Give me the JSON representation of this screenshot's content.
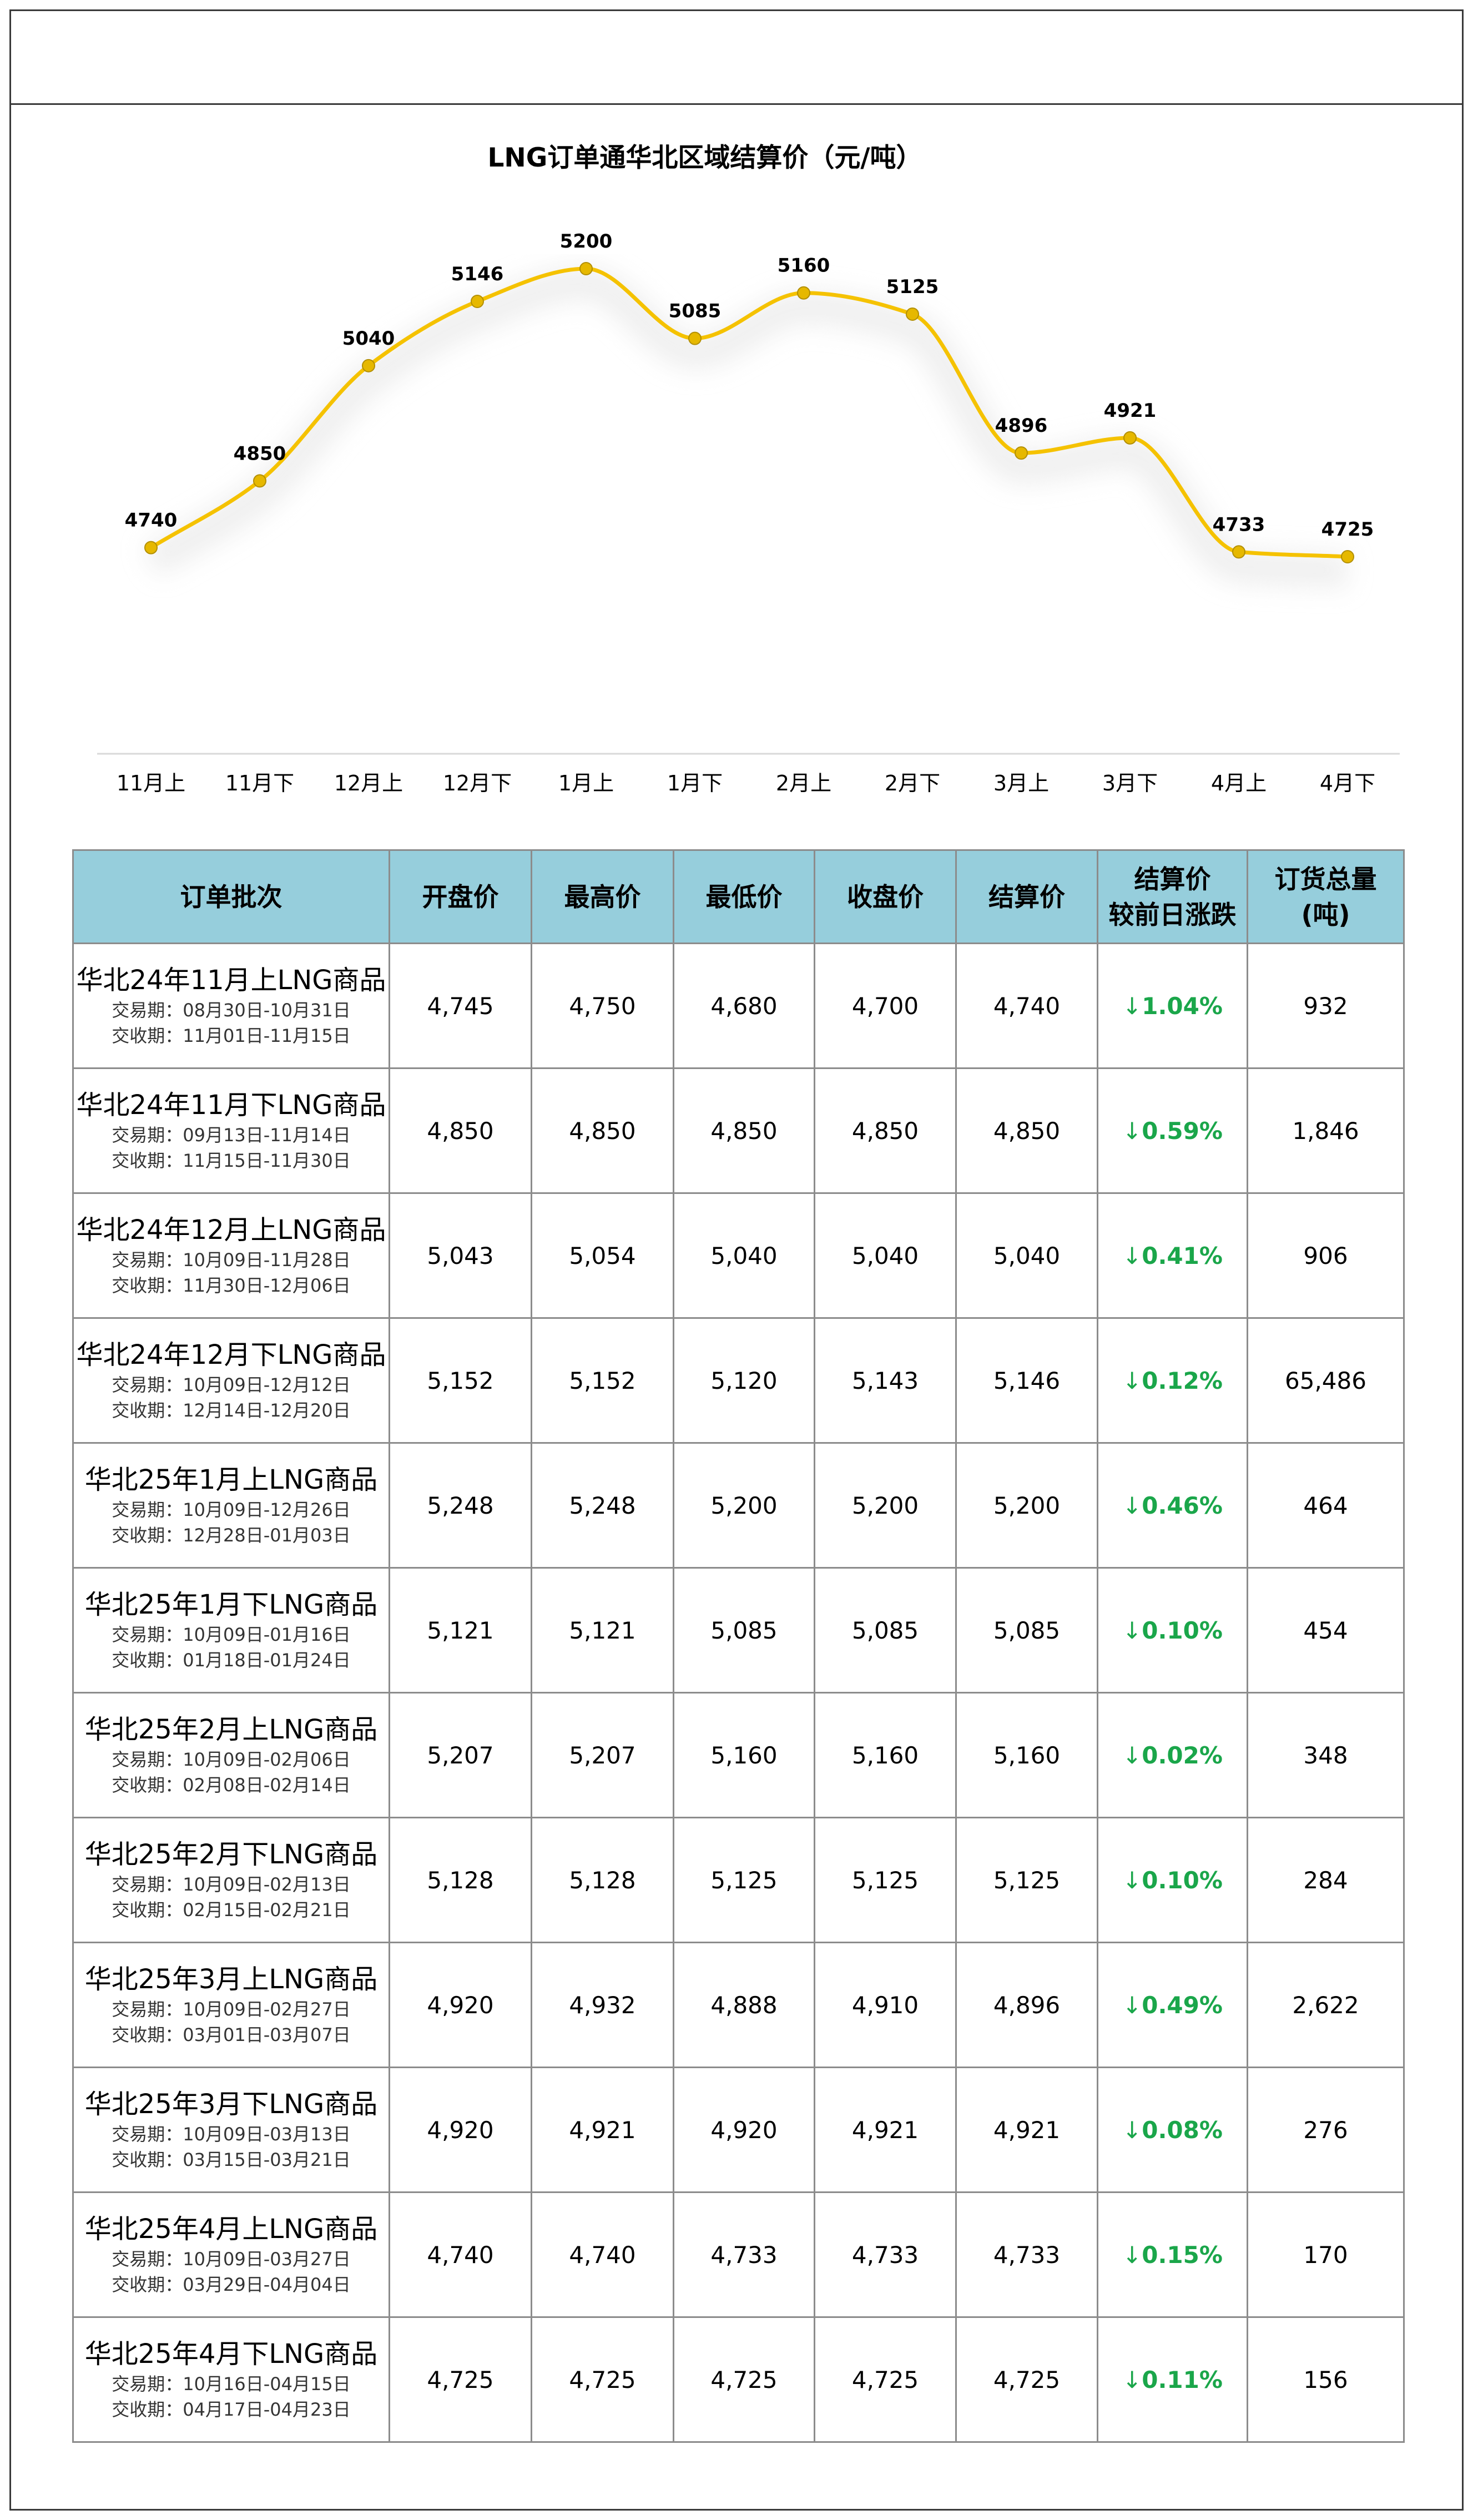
{
  "chart_data": {
    "type": "line",
    "title": "LNG订单通华北区域结算价（元/吨）",
    "categories": [
      "11月上",
      "11月下",
      "12月上",
      "12月下",
      "1月上",
      "1月下",
      "2月上",
      "2月下",
      "3月上",
      "3月下",
      "4月上",
      "4月下"
    ],
    "series": [
      {
        "values": [
          4740,
          4850,
          5040,
          5146,
          5200,
          5085,
          5160,
          5125,
          4896,
          4921,
          4733,
          4725
        ]
      }
    ],
    "line_color": "#f5c200",
    "marker_color": "#e6b800",
    "smooth": true,
    "data_labels": true,
    "grid": false
  },
  "table": {
    "headers": [
      {
        "lines": [
          "订单批次"
        ]
      },
      {
        "lines": [
          "开盘价"
        ]
      },
      {
        "lines": [
          "最高价"
        ]
      },
      {
        "lines": [
          "最低价"
        ]
      },
      {
        "lines": [
          "收盘价"
        ]
      },
      {
        "lines": [
          "结算价"
        ]
      },
      {
        "lines": [
          "结算价",
          "较前日涨跌"
        ]
      },
      {
        "lines": [
          "订货总量",
          "(吨)"
        ]
      }
    ],
    "header_bg": "#96cedc",
    "change_color": "#1aa64a",
    "rows": [
      {
        "name": "华北24年11月上LNG商品",
        "trade": "交易期：08月30日-10月31日",
        "delivery": "交收期：11月01日-11月15日",
        "open": "4,745",
        "high": "4,750",
        "low": "4,680",
        "close": "4,700",
        "settle": "4,740",
        "arrow": "↓",
        "change": "1.04%",
        "volume": "932"
      },
      {
        "name": "华北24年11月下LNG商品",
        "trade": "交易期：09月13日-11月14日",
        "delivery": "交收期：11月15日-11月30日",
        "open": "4,850",
        "high": "4,850",
        "low": "4,850",
        "close": "4,850",
        "settle": "4,850",
        "arrow": "↓",
        "change": "0.59%",
        "volume": "1,846"
      },
      {
        "name": "华北24年12月上LNG商品",
        "trade": "交易期：10月09日-11月28日",
        "delivery": "交收期：11月30日-12月06日",
        "open": "5,043",
        "high": "5,054",
        "low": "5,040",
        "close": "5,040",
        "settle": "5,040",
        "arrow": "↓",
        "change": "0.41%",
        "volume": "906"
      },
      {
        "name": "华北24年12月下LNG商品",
        "trade": "交易期：10月09日-12月12日",
        "delivery": "交收期：12月14日-12月20日",
        "open": "5,152",
        "high": "5,152",
        "low": "5,120",
        "close": "5,143",
        "settle": "5,146",
        "arrow": "↓",
        "change": "0.12%",
        "volume": "65,486"
      },
      {
        "name": "华北25年1月上LNG商品",
        "trade": "交易期：10月09日-12月26日",
        "delivery": "交收期：12月28日-01月03日",
        "open": "5,248",
        "high": "5,248",
        "low": "5,200",
        "close": "5,200",
        "settle": "5,200",
        "arrow": "↓",
        "change": "0.46%",
        "volume": "464"
      },
      {
        "name": "华北25年1月下LNG商品",
        "trade": "交易期：10月09日-01月16日",
        "delivery": "交收期：01月18日-01月24日",
        "open": "5,121",
        "high": "5,121",
        "low": "5,085",
        "close": "5,085",
        "settle": "5,085",
        "arrow": "↓",
        "change": "0.10%",
        "volume": "454"
      },
      {
        "name": "华北25年2月上LNG商品",
        "trade": "交易期：10月09日-02月06日",
        "delivery": "交收期：02月08日-02月14日",
        "open": "5,207",
        "high": "5,207",
        "low": "5,160",
        "close": "5,160",
        "settle": "5,160",
        "arrow": "↓",
        "change": "0.02%",
        "volume": "348"
      },
      {
        "name": "华北25年2月下LNG商品",
        "trade": "交易期：10月09日-02月13日",
        "delivery": "交收期：02月15日-02月21日",
        "open": "5,128",
        "high": "5,128",
        "low": "5,125",
        "close": "5,125",
        "settle": "5,125",
        "arrow": "↓",
        "change": "0.10%",
        "volume": "284"
      },
      {
        "name": "华北25年3月上LNG商品",
        "trade": "交易期：10月09日-02月27日",
        "delivery": "交收期：03月01日-03月07日",
        "open": "4,920",
        "high": "4,932",
        "low": "4,888",
        "close": "4,910",
        "settle": "4,896",
        "arrow": "↓",
        "change": "0.49%",
        "volume": "2,622"
      },
      {
        "name": "华北25年3月下LNG商品",
        "trade": "交易期：10月09日-03月13日",
        "delivery": "交收期：03月15日-03月21日",
        "open": "4,920",
        "high": "4,921",
        "low": "4,920",
        "close": "4,921",
        "settle": "4,921",
        "arrow": "↓",
        "change": "0.08%",
        "volume": "276"
      },
      {
        "name": "华北25年4月上LNG商品",
        "trade": "交易期：10月09日-03月27日",
        "delivery": "交收期：03月29日-04月04日",
        "open": "4,740",
        "high": "4,740",
        "low": "4,733",
        "close": "4,733",
        "settle": "4,733",
        "arrow": "↓",
        "change": "0.15%",
        "volume": "170"
      },
      {
        "name": "华北25年4月下LNG商品",
        "trade": "交易期：10月16日-04月15日",
        "delivery": "交收期：04月17日-04月23日",
        "open": "4,725",
        "high": "4,725",
        "low": "4,725",
        "close": "4,725",
        "settle": "4,725",
        "arrow": "↓",
        "change": "0.11%",
        "volume": "156"
      }
    ]
  }
}
